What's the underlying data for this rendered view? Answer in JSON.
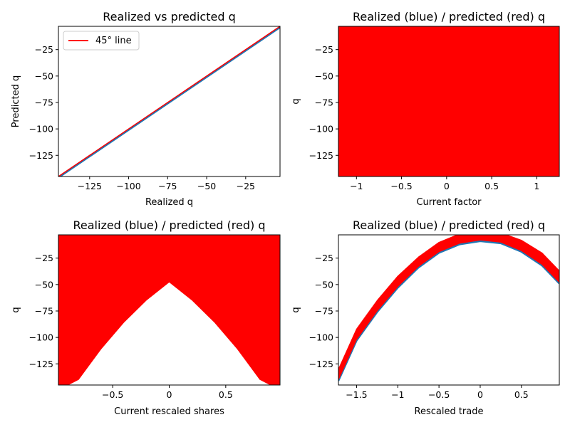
{
  "chart_data": [
    {
      "type": "line",
      "title": "Realized vs predicted q",
      "xlabel": "Realized q",
      "ylabel": "Predicted q",
      "xlim": [
        -145,
        -3
      ],
      "ylim": [
        -145,
        -3
      ],
      "xticks": [
        -125,
        -100,
        -75,
        -50,
        -25
      ],
      "yticks": [
        -125,
        -100,
        -75,
        -50,
        -25
      ],
      "legend": {
        "placement": "top-left",
        "entries": [
          {
            "label": "45° line",
            "color": "#ff0000"
          }
        ]
      },
      "series": [
        {
          "name": "45° line",
          "color": "#ff0000",
          "x": [
            -145,
            -3
          ],
          "y": [
            -145,
            -3
          ]
        }
      ],
      "scatter_color": "#1f77b4",
      "scatter_offset": -0.8
    },
    {
      "type": "scatter",
      "title": "Realized (blue) / predicted (red) q",
      "xlabel": "Current factor",
      "ylabel": "q",
      "xlim": [
        -1.2,
        1.25
      ],
      "ylim": [
        -145,
        -3
      ],
      "xticks": [
        -1.0,
        -0.5,
        0.0,
        0.5,
        1.0
      ],
      "yticks": [
        -125,
        -100,
        -75,
        -50,
        -25
      ],
      "fill_region": {
        "x": [
          -1.2,
          1.25
        ],
        "y": [
          -145,
          -3
        ]
      },
      "colors": {
        "realized": "#1f77b4",
        "predicted": "#ff0000"
      }
    },
    {
      "type": "scatter",
      "title": "Realized (blue) / predicted (red) q",
      "xlabel": "Current rescaled shares",
      "ylabel": "q",
      "xlim": [
        -0.98,
        0.98
      ],
      "ylim": [
        -145,
        -3
      ],
      "xticks": [
        -0.5,
        0.0,
        0.5
      ],
      "yticks": [
        -125,
        -100,
        -75,
        -50,
        -25
      ],
      "lower_envelope": {
        "x": [
          -0.98,
          -0.8,
          -0.6,
          -0.4,
          -0.2,
          0.0,
          0.2,
          0.4,
          0.6,
          0.8,
          0.98
        ],
        "y": [
          -150,
          -140,
          -111,
          -86,
          -65,
          -48,
          -65,
          -86,
          -111,
          -140,
          -150
        ]
      },
      "colors": {
        "realized": "#1f77b4",
        "predicted": "#ff0000"
      }
    },
    {
      "type": "scatter",
      "title": "Realized (blue) / predicted (red) q",
      "xlabel": "Rescaled trade",
      "ylabel": "q",
      "xlim": [
        -1.72,
        0.96
      ],
      "ylim": [
        -145,
        -3
      ],
      "xticks": [
        -1.5,
        -1.0,
        -0.5,
        0.0,
        0.5
      ],
      "yticks": [
        -125,
        -100,
        -75,
        -50,
        -25
      ],
      "band": {
        "x": [
          -1.72,
          -1.5,
          -1.25,
          -1.0,
          -0.75,
          -0.5,
          -0.25,
          0.0,
          0.25,
          0.5,
          0.75,
          0.96
        ],
        "upper": [
          -130,
          -92,
          -65,
          -42,
          -24,
          -10,
          -2,
          2,
          -1,
          -8,
          -20,
          -37
        ],
        "lower": [
          -140,
          -102,
          -75,
          -52,
          -33,
          -19,
          -11,
          -8,
          -10,
          -18,
          -31,
          -48
        ]
      },
      "colors": {
        "realized": "#1f77b4",
        "predicted": "#ff0000"
      }
    }
  ]
}
